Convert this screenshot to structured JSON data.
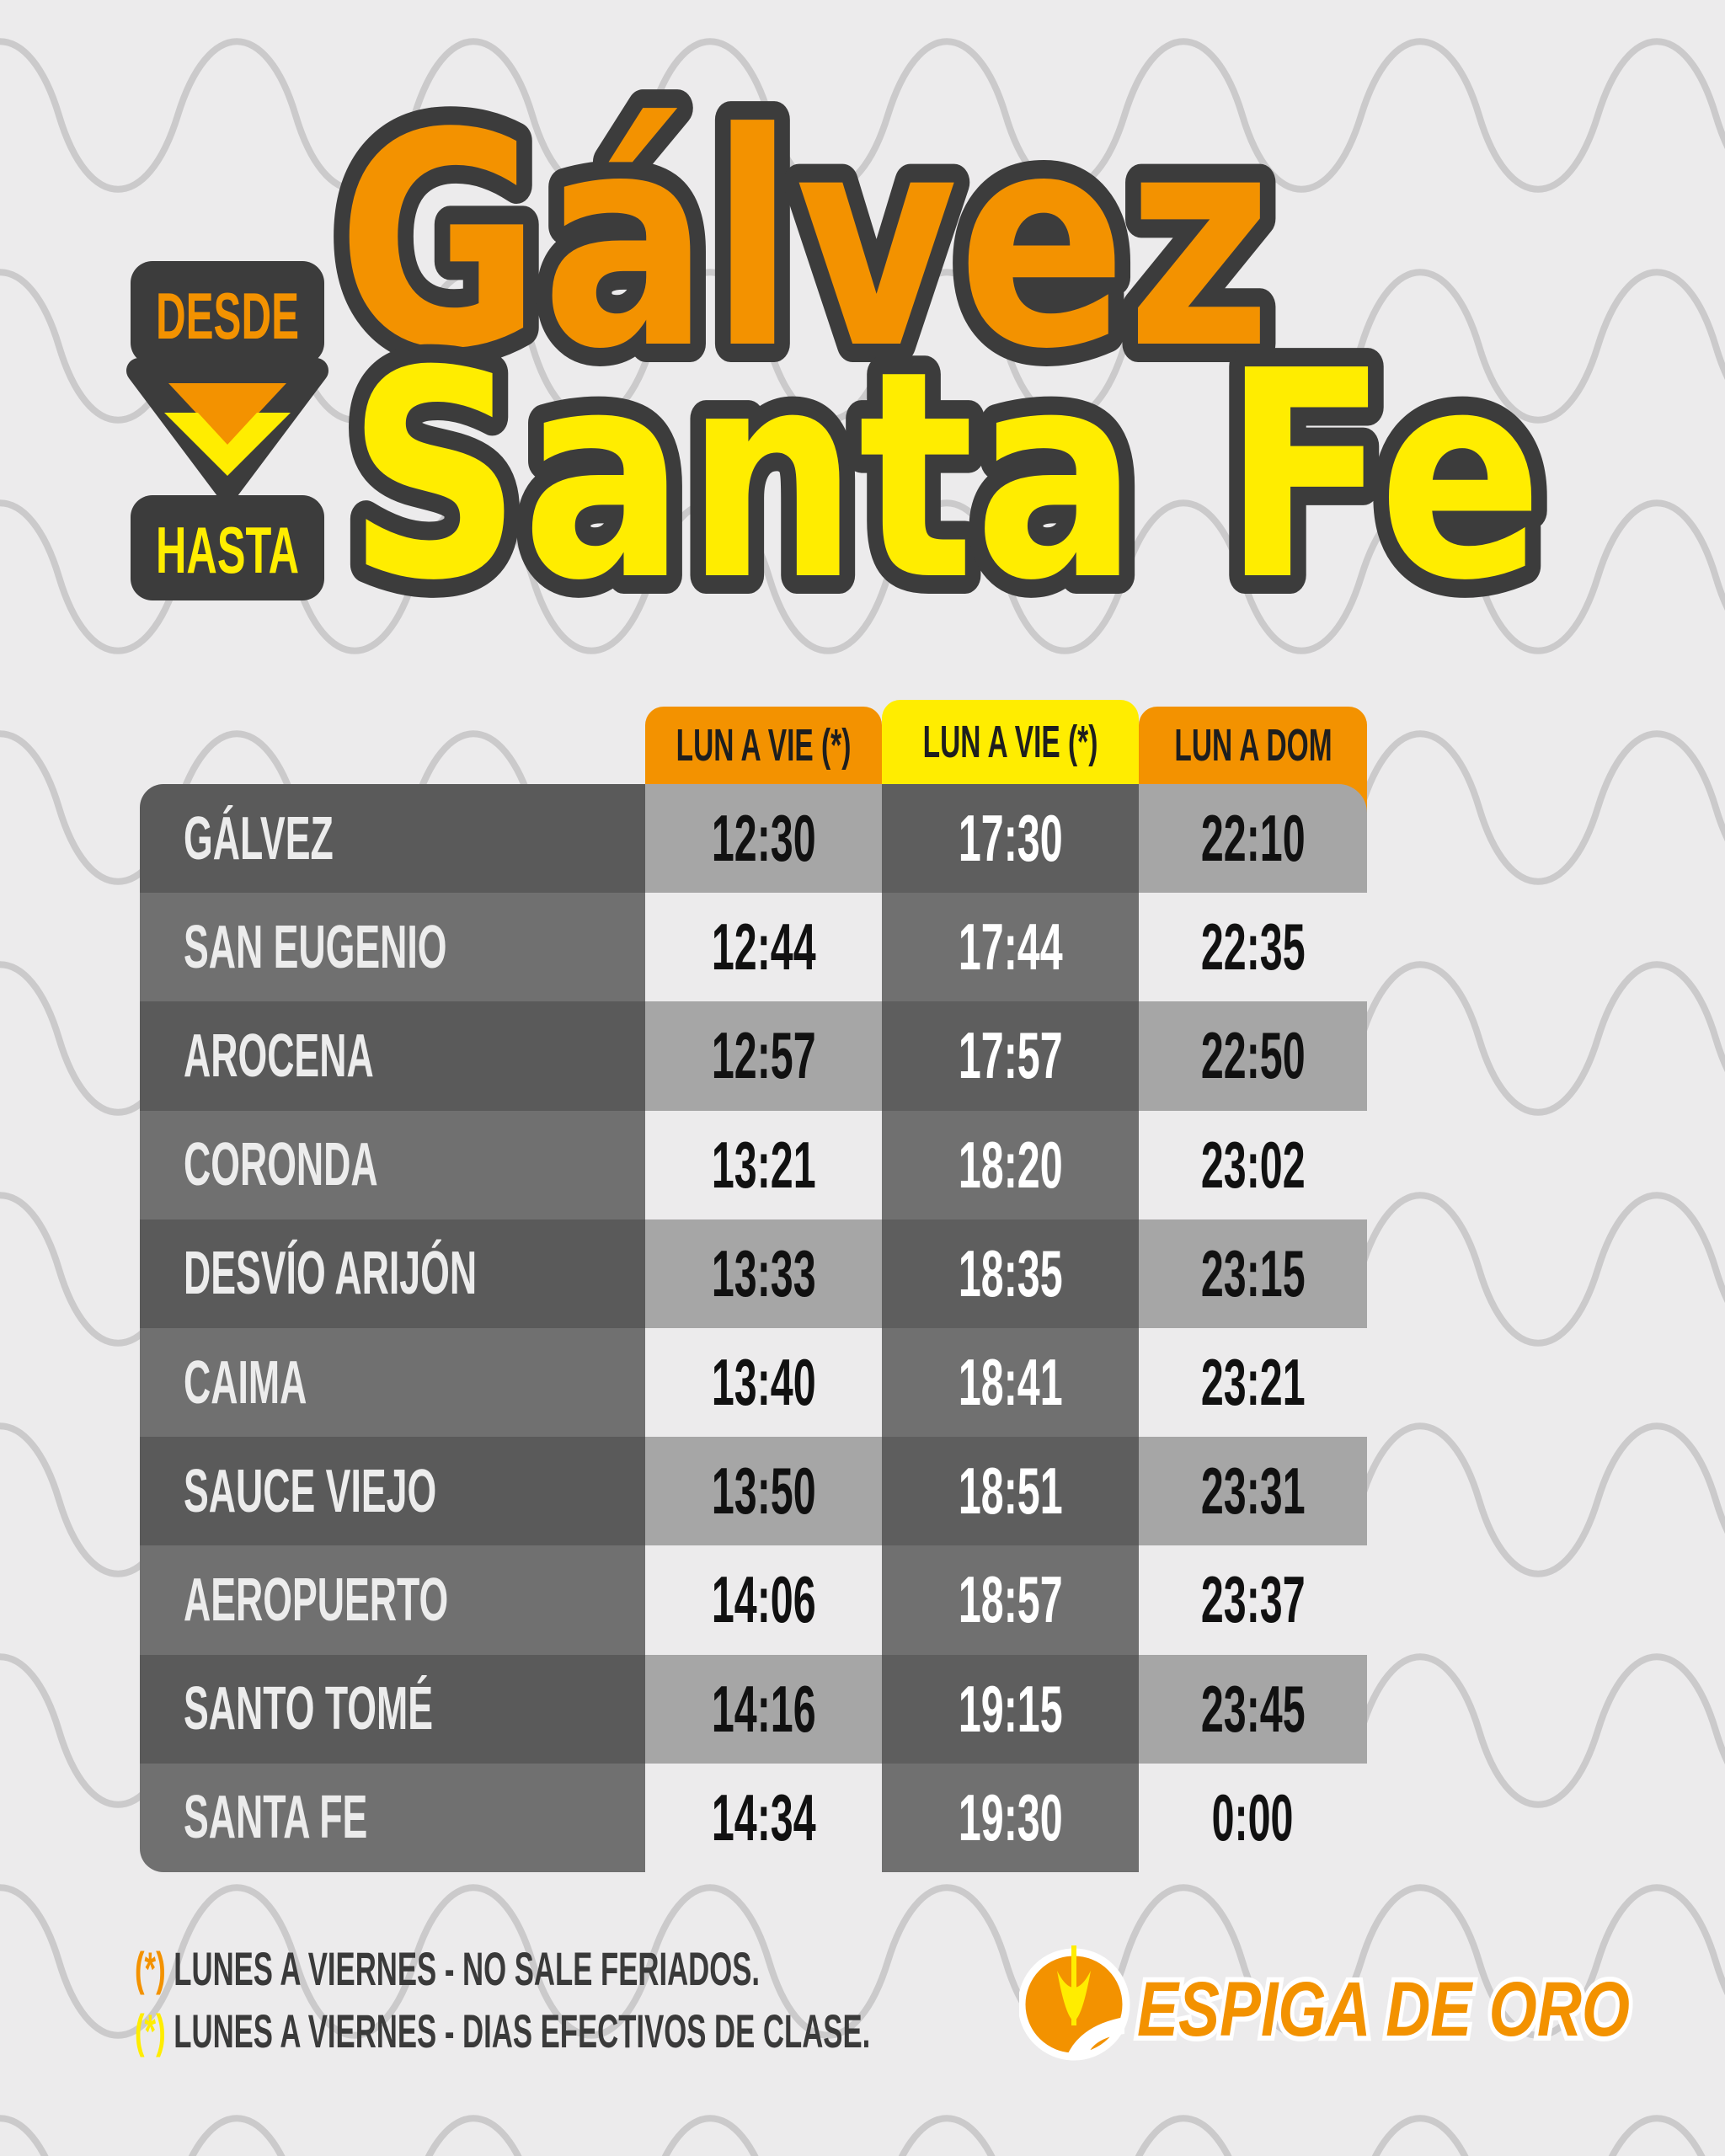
{
  "header": {
    "from_label": "DESDE",
    "to_label": "HASTA",
    "origin": "Gálvez",
    "destination": "Santa Fe"
  },
  "colors": {
    "orange": "#f39200",
    "yellow": "#ffed00",
    "dark": "#3c3c3c",
    "background": "#ecebec"
  },
  "table": {
    "columns": [
      {
        "label": "LUN A VIE (*)",
        "color": "#f39200"
      },
      {
        "label": "LUN A VIE (*)",
        "color": "#ffed00"
      },
      {
        "label": "LUN A DOM",
        "color": "#f39200"
      }
    ],
    "rows": [
      {
        "stop": "GÁLVEZ",
        "times": [
          "12:30",
          "17:30",
          "22:10"
        ]
      },
      {
        "stop": "SAN EUGENIO",
        "times": [
          "12:44",
          "17:44",
          "22:35"
        ]
      },
      {
        "stop": "AROCENA",
        "times": [
          "12:57",
          "17:57",
          "22:50"
        ]
      },
      {
        "stop": "CORONDA",
        "times": [
          "13:21",
          "18:20",
          "23:02"
        ]
      },
      {
        "stop": "DESVÍO ARIJÓN",
        "times": [
          "13:33",
          "18:35",
          "23:15"
        ]
      },
      {
        "stop": "CAIMA",
        "times": [
          "13:40",
          "18:41",
          "23:21"
        ]
      },
      {
        "stop": "SAUCE VIEJO",
        "times": [
          "13:50",
          "18:51",
          "23:31"
        ]
      },
      {
        "stop": "AEROPUERTO",
        "times": [
          "14:06",
          "18:57",
          "23:37"
        ]
      },
      {
        "stop": "SANTO TOMÉ",
        "times": [
          "14:16",
          "19:15",
          "23:45"
        ]
      },
      {
        "stop": "SANTA FE",
        "times": [
          "14:34",
          "19:30",
          "0:00"
        ]
      }
    ]
  },
  "notes": [
    {
      "marker": "(*)",
      "text": "LUNES A VIERNES - NO SALE FERIADOS.",
      "color": "#f39200"
    },
    {
      "marker": "(*)",
      "text": "LUNES A VIERNES - DIAS EFECTIVOS DE CLASE.",
      "color": "#ffed00"
    }
  ],
  "logo": {
    "text": "ESPIGA DE ORO",
    "icon": "wheat-road-icon"
  }
}
